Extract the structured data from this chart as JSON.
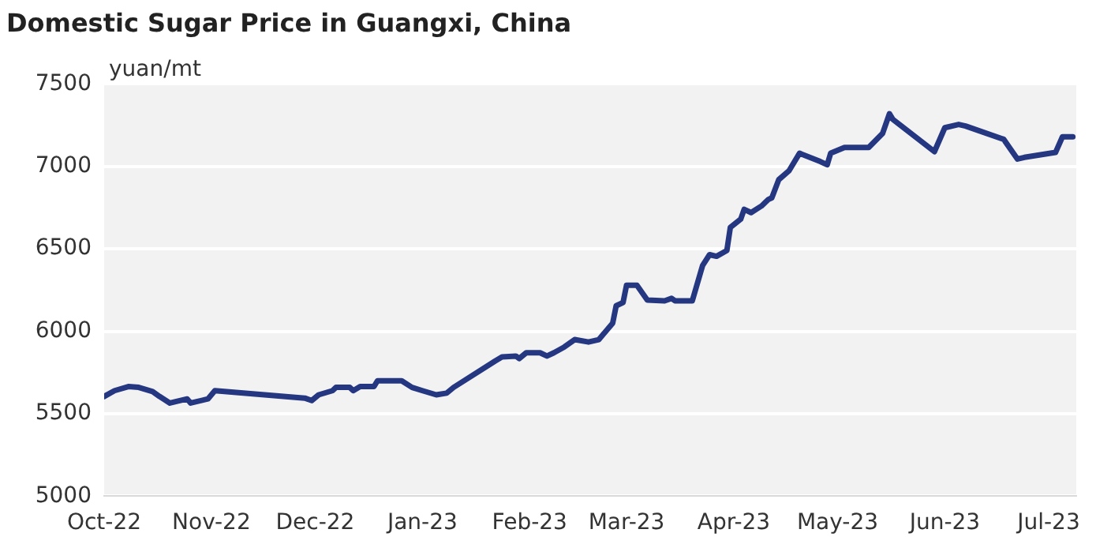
{
  "chart_data": {
    "type": "line",
    "title": "Domestic Sugar Price in Guangxi, China",
    "ylabel": "yuan/mt",
    "series": [
      {
        "color": "#253780",
        "x": [
          "2022-10-01",
          "2022-10-04",
          "2022-10-08",
          "2022-10-11",
          "2022-10-15",
          "2022-10-17",
          "2022-10-20",
          "2022-10-25",
          "2022-10-26",
          "2022-10-31",
          "2022-11-02",
          "2022-11-28",
          "2022-11-30",
          "2022-12-02",
          "2022-12-06",
          "2022-12-07",
          "2022-12-11",
          "2022-12-12",
          "2022-12-14",
          "2022-12-18",
          "2022-12-19",
          "2022-12-26",
          "2022-12-29",
          "2023-01-01",
          "2023-01-05",
          "2023-01-08",
          "2023-01-10",
          "2023-01-22",
          "2023-01-24",
          "2023-01-28",
          "2023-01-29",
          "2023-01-31",
          "2023-02-04",
          "2023-02-06",
          "2023-02-08",
          "2023-02-11",
          "2023-02-14",
          "2023-02-18",
          "2023-02-21",
          "2023-02-25",
          "2023-02-26",
          "2023-02-28",
          "2023-03-01",
          "2023-03-04",
          "2023-03-07",
          "2023-03-12",
          "2023-03-14",
          "2023-03-15",
          "2023-03-20",
          "2023-03-23",
          "2023-03-25",
          "2023-03-27",
          "2023-03-30",
          "2023-03-31",
          "2023-04-03",
          "2023-04-04",
          "2023-04-06",
          "2023-04-09",
          "2023-04-11",
          "2023-04-12",
          "2023-04-14",
          "2023-04-17",
          "2023-04-20",
          "2023-04-26",
          "2023-04-28",
          "2023-04-29",
          "2023-05-03",
          "2023-05-10",
          "2023-05-14",
          "2023-05-16",
          "2023-05-17",
          "2023-05-29",
          "2023-06-01",
          "2023-06-05",
          "2023-06-07",
          "2023-06-18",
          "2023-06-22",
          "2023-06-24",
          "2023-07-03",
          "2023-07-05",
          "2023-07-08"
        ],
        "values": [
          5605,
          5640,
          5665,
          5660,
          5635,
          5605,
          5565,
          5590,
          5565,
          5590,
          5640,
          5595,
          5580,
          5615,
          5640,
          5660,
          5660,
          5640,
          5665,
          5665,
          5700,
          5700,
          5660,
          5640,
          5615,
          5625,
          5660,
          5820,
          5845,
          5850,
          5835,
          5870,
          5870,
          5850,
          5870,
          5905,
          5950,
          5935,
          5950,
          6050,
          6155,
          6175,
          6280,
          6280,
          6190,
          6185,
          6200,
          6185,
          6185,
          6400,
          6465,
          6455,
          6490,
          6630,
          6680,
          6740,
          6720,
          6760,
          6800,
          6810,
          6920,
          6975,
          7080,
          7030,
          7010,
          7080,
          7115,
          7115,
          7200,
          7320,
          7285,
          7090,
          7235,
          7255,
          7245,
          7165,
          7045,
          7055,
          7085,
          7180,
          7180
        ]
      }
    ],
    "xlim": [
      "2022-10-01",
      "2023-07-09"
    ],
    "xticks": [
      {
        "value": "2022-10-01",
        "label": "Oct-22"
      },
      {
        "value": "2022-11-01",
        "label": "Nov-22"
      },
      {
        "value": "2022-12-01",
        "label": "Dec-22"
      },
      {
        "value": "2023-01-01",
        "label": "Jan-23"
      },
      {
        "value": "2023-02-01",
        "label": "Feb-23"
      },
      {
        "value": "2023-03-01",
        "label": "Mar-23"
      },
      {
        "value": "2023-04-01",
        "label": "Apr-23"
      },
      {
        "value": "2023-05-01",
        "label": "May-23"
      },
      {
        "value": "2023-06-01",
        "label": "Jun-23"
      },
      {
        "value": "2023-07-01",
        "label": "Jul-23"
      }
    ],
    "ylim": [
      5000,
      7500
    ],
    "yticks": [
      5000,
      5500,
      6000,
      6500,
      7000,
      7500
    ],
    "grid": "y",
    "marker": "none",
    "line_style": "solid",
    "legend": false
  }
}
